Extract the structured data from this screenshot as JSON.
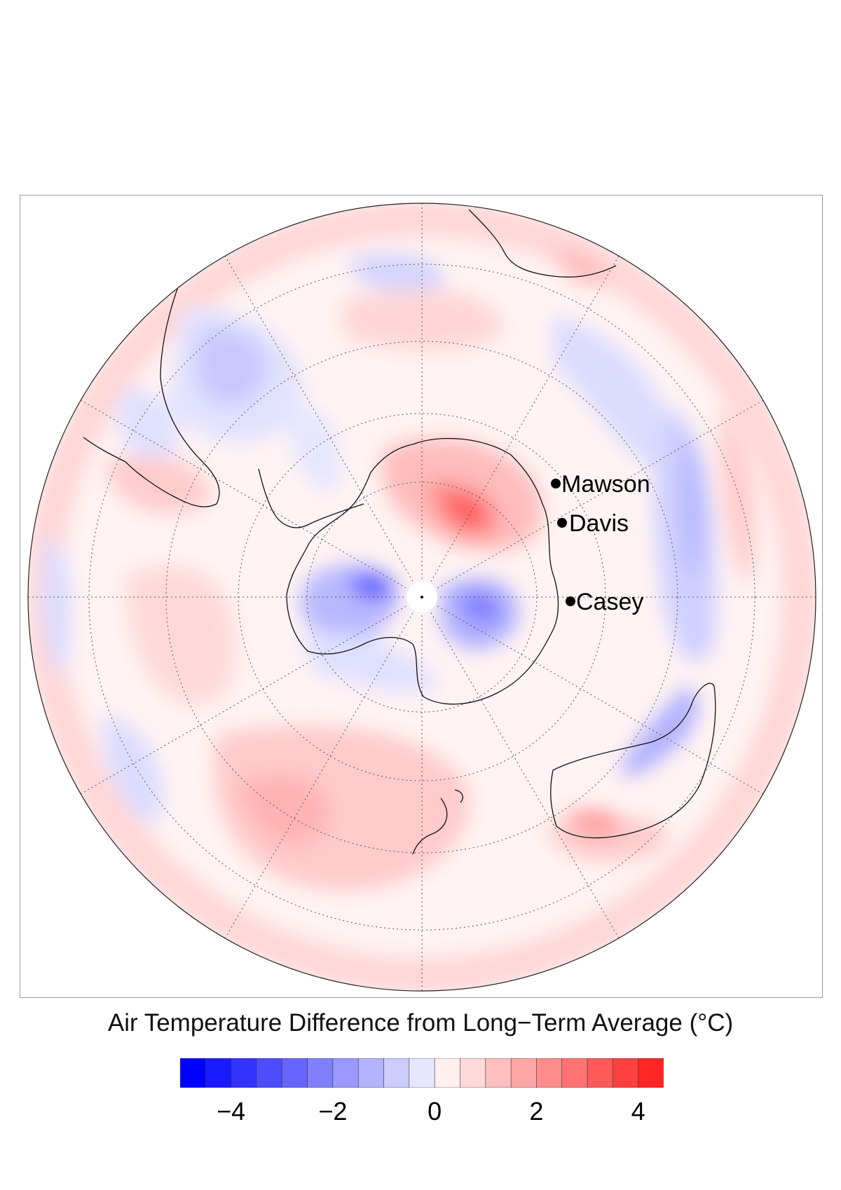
{
  "map": {
    "projection": "south-polar stereographic",
    "stations": [
      {
        "name": "Mawson"
      },
      {
        "name": "Davis"
      },
      {
        "name": "Casey"
      }
    ]
  },
  "legend": {
    "title": "Air Temperature Difference from Long−Term Average (°C)",
    "colors": [
      "#0000ff",
      "#1a1aff",
      "#3333ff",
      "#4d4dff",
      "#6666ff",
      "#8080ff",
      "#9999ff",
      "#b3b3ff",
      "#ccccff",
      "#e6e6ff",
      "#fff0f0",
      "#ffd9d9",
      "#ffbfbf",
      "#ffa6a6",
      "#ff8c8c",
      "#ff7373",
      "#ff5959",
      "#ff4040",
      "#ff2626"
    ],
    "ticks": [
      {
        "label": "−4",
        "value": -4
      },
      {
        "label": "−2",
        "value": -2
      },
      {
        "label": "0",
        "value": 0
      },
      {
        "label": "2",
        "value": 2
      },
      {
        "label": "4",
        "value": 4
      }
    ]
  }
}
